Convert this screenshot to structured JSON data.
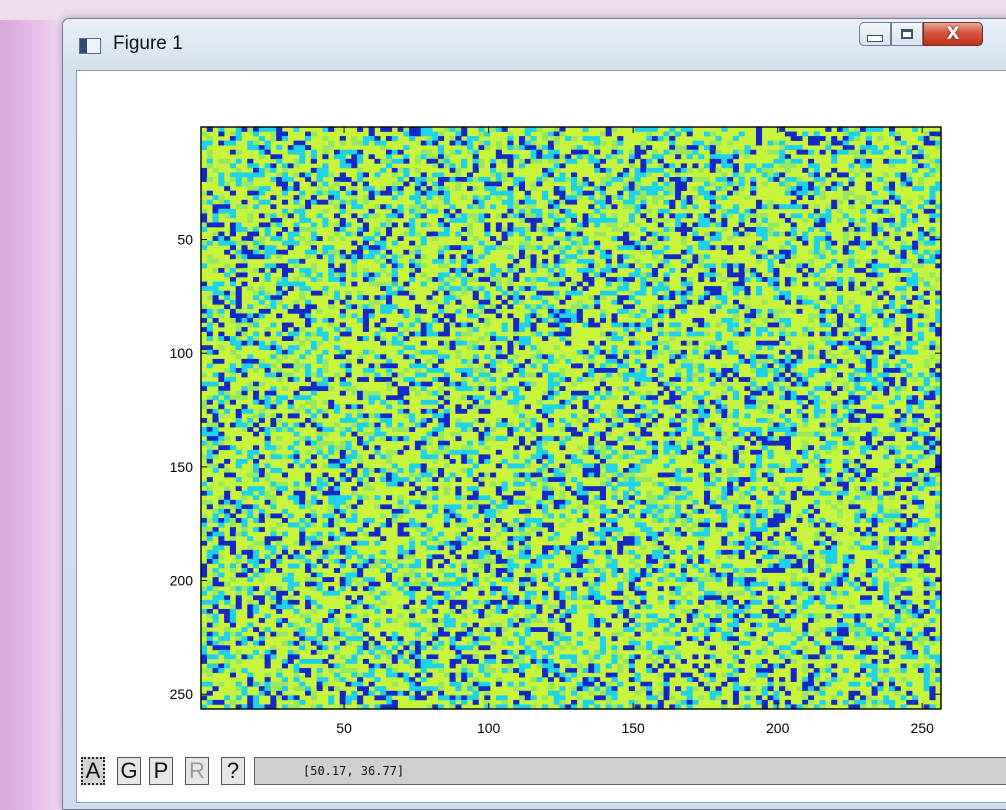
{
  "window": {
    "title": "Figure 1",
    "icon": "figure-window-icon",
    "controls": {
      "minimize": "minimize-icon",
      "maximize": "maximize-icon",
      "close_glyph": "X"
    }
  },
  "chart_data": {
    "type": "heatmap",
    "title": "",
    "xlabel": "",
    "ylabel": "",
    "x_ticks": [
      "50",
      "100",
      "150",
      "200",
      "250"
    ],
    "y_ticks": [
      "50",
      "100",
      "150",
      "200",
      "250"
    ],
    "xlim": [
      0.5,
      256.5
    ],
    "ylim": [
      256.5,
      0.5
    ],
    "y_reversed": true,
    "grid": false,
    "description_of_values": "256x256 random field rendered with 4 quantized colors",
    "levels": [
      {
        "color": "#c8f53c",
        "share": 0.52
      },
      {
        "color": "#96e860",
        "share": 0.12
      },
      {
        "color": "#1ed2ea",
        "share": 0.2
      },
      {
        "color": "#1428c8",
        "share": 0.16
      }
    ]
  },
  "toolbar": {
    "buttons": [
      {
        "label": "A",
        "state": "active"
      },
      {
        "label": "G",
        "state": "normal"
      },
      {
        "label": "P",
        "state": "normal"
      },
      {
        "label": "R",
        "state": "disabled"
      },
      {
        "label": "?",
        "state": "normal"
      }
    ],
    "coordinates": "[50.17, 36.77]"
  }
}
